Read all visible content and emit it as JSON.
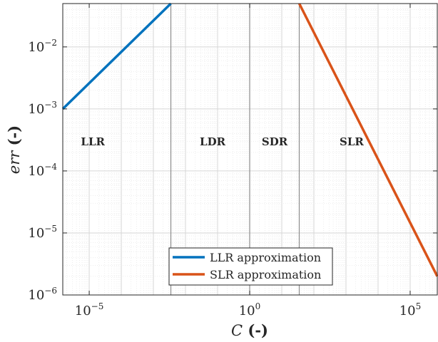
{
  "chart_data": {
    "type": "line",
    "xscale": "log",
    "yscale": "log",
    "xlim": [
      1.5e-06,
      700000.0
    ],
    "ylim": [
      1e-06,
      0.05
    ],
    "grid": true,
    "xlabel": {
      "symbol": "C",
      "unit": " (-)"
    },
    "ylabel": {
      "symbol": "err",
      "unit": "  (-)"
    },
    "xticks": [
      {
        "value": 1e-05,
        "base": "10",
        "exp": "−5"
      },
      {
        "value": 1,
        "base": "10",
        "exp": "0"
      },
      {
        "value": 100000.0,
        "base": "10",
        "exp": "5"
      }
    ],
    "yticks": [
      {
        "value": 1e-06,
        "base": "10",
        "exp": "−6"
      },
      {
        "value": 1e-05,
        "base": "10",
        "exp": "−5"
      },
      {
        "value": 0.0001,
        "base": "10",
        "exp": "−4"
      },
      {
        "value": 0.001,
        "base": "10",
        "exp": "−3"
      },
      {
        "value": 0.01,
        "base": "10",
        "exp": "−2"
      }
    ],
    "boundaries": [
      0.0035,
      1.0,
      35
    ],
    "regions": [
      {
        "label": "LLR",
        "x": 1.3e-05,
        "y": 0.00026
      },
      {
        "label": "LDR",
        "x": 0.07,
        "y": 0.00026
      },
      {
        "label": "SDR",
        "x": 6,
        "y": 0.00026
      },
      {
        "label": "SLR",
        "x": 1500,
        "y": 0.00026
      }
    ],
    "series": [
      {
        "name": "LLR approximation",
        "color": "#0072BD",
        "x": [
          1.5e-06,
          0.0035
        ],
        "y": [
          0.001,
          0.05
        ]
      },
      {
        "name": "SLR approximation",
        "color": "#D95319",
        "x": [
          35,
          700000.0
        ],
        "y": [
          0.05,
          2e-06
        ]
      }
    ],
    "legend": "bottom-center"
  }
}
